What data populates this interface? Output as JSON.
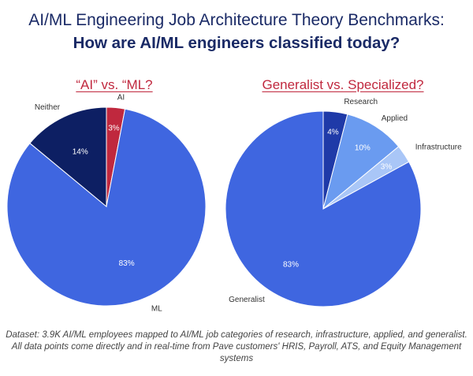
{
  "header": {
    "title": "AI/ML Engineering Job Architecture Theory Benchmarks:",
    "subtitle": "How are AI/ML engineers classified today?"
  },
  "chart_data": [
    {
      "type": "pie",
      "title": "“AI” vs. “ML?",
      "slices": [
        {
          "label": "AI",
          "value": 3,
          "value_label": "3%",
          "color": "#c0283e"
        },
        {
          "label": "ML",
          "value": 83,
          "value_label": "83%",
          "color": "#3f66e0"
        },
        {
          "label": "Neither",
          "value": 14,
          "value_label": "14%",
          "color": "#0d1f63"
        }
      ]
    },
    {
      "type": "pie",
      "title": "Generalist vs. Specialized?",
      "slices": [
        {
          "label": "Research",
          "value": 4,
          "value_label": "4%",
          "color": "#1f3aa8"
        },
        {
          "label": "Applied",
          "value": 10,
          "value_label": "10%",
          "color": "#6a9bf0"
        },
        {
          "label": "Infrastructure",
          "value": 3,
          "value_label": "3%",
          "color": "#a9c6f7"
        },
        {
          "label": "Generalist",
          "value": 83,
          "value_label": "83%",
          "color": "#3f66e0"
        }
      ]
    }
  ],
  "footnote": "Dataset: 3.9K AI/ML employees mapped to AI/ML job categories of research, infrastructure, applied, and generalist. All data points come directly and in real-time from Pave customers' HRIS, Payroll, ATS, and Equity Management systems"
}
